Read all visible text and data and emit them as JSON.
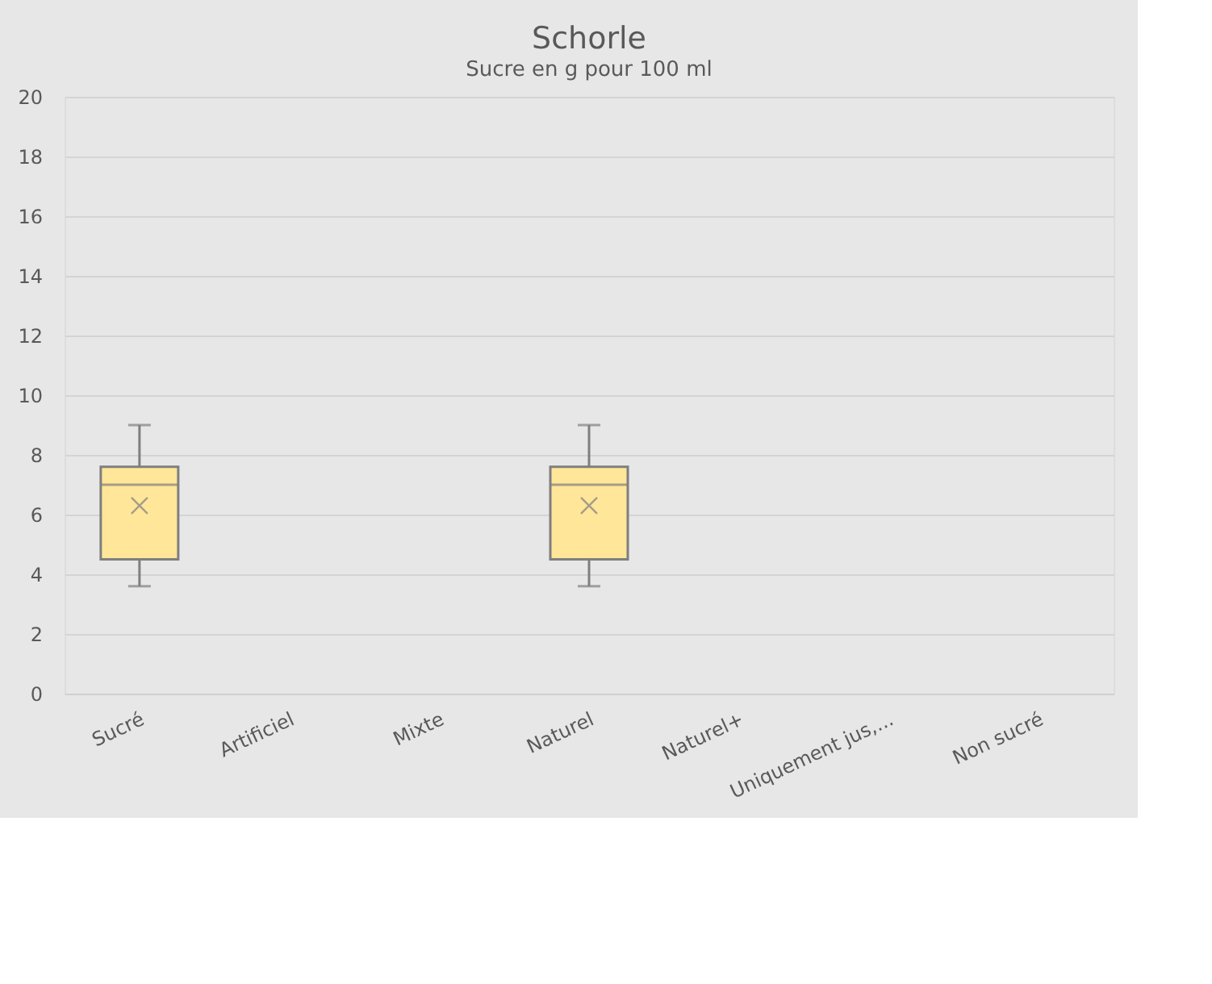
{
  "chart_data": {
    "type": "box",
    "title": "Schorle",
    "subtitle": "Sucre en g pour 100 ml",
    "categories": [
      "Sucré",
      "Artificiel",
      "Mixte",
      "Naturel",
      "Naturel+",
      "Uniquement jus,...",
      "Non sucré"
    ],
    "series": [
      {
        "color": "#ffe699",
        "boxes": [
          {
            "low": 3.6,
            "q1": 4.5,
            "median": 7.0,
            "q3": 7.6,
            "high": 9.0,
            "mean": 6.3
          },
          null,
          null,
          {
            "low": 3.6,
            "q1": 4.5,
            "median": 7.0,
            "q3": 7.6,
            "high": 9.0,
            "mean": 6.3
          },
          null,
          null,
          null
        ]
      }
    ],
    "ylim": [
      0,
      20
    ],
    "yticks": [
      0,
      2,
      4,
      6,
      8,
      10,
      12,
      14,
      16,
      18,
      20
    ],
    "grid": "y",
    "legend": false,
    "marker": "cross"
  }
}
